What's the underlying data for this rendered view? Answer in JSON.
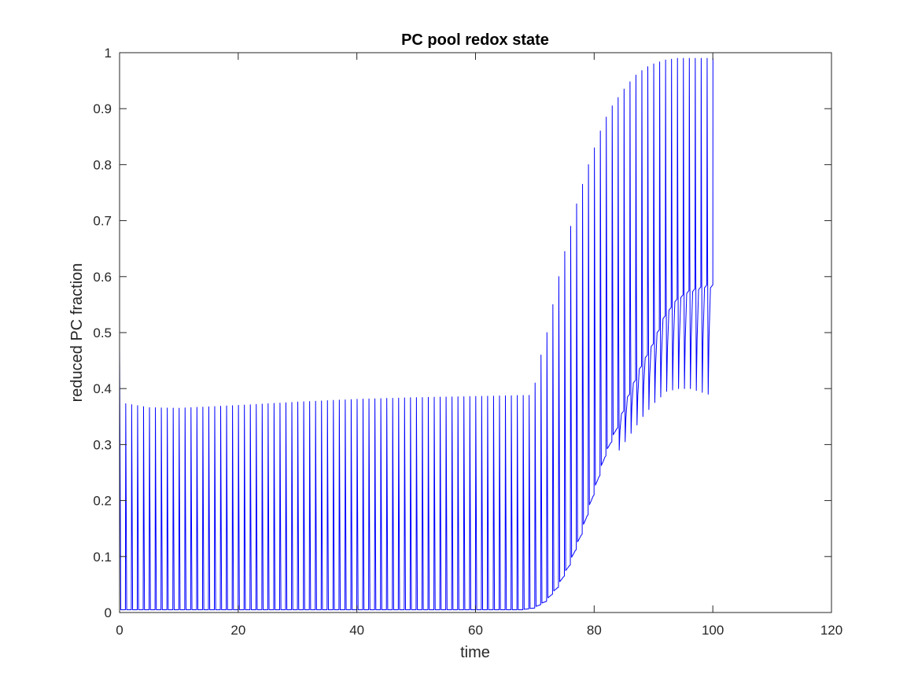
{
  "chart_data": {
    "type": "line",
    "title": "PC pool redox state",
    "xlabel": "time",
    "ylabel": "reduced PC fraction",
    "xlim": [
      0,
      120
    ],
    "ylim": [
      0,
      1
    ],
    "xticks": [
      0,
      20,
      40,
      60,
      80,
      100,
      120
    ],
    "yticks": [
      0,
      0.1,
      0.2,
      0.3,
      0.4,
      0.5,
      0.6,
      0.7,
      0.8,
      0.9,
      1
    ],
    "grid": false,
    "box": true,
    "series": [
      {
        "color": "#0000ff",
        "style": "periodic spikes",
        "pulse_period": 1,
        "first_point": [
          0,
          0.47
        ],
        "end_time": 100,
        "final_value": 0.99,
        "peak_envelope": [
          [
            1,
            0.373
          ],
          [
            5,
            0.366
          ],
          [
            10,
            0.365
          ],
          [
            20,
            0.37
          ],
          [
            30,
            0.376
          ],
          [
            40,
            0.381
          ],
          [
            50,
            0.384
          ],
          [
            60,
            0.386
          ],
          [
            69,
            0.388
          ],
          [
            70,
            0.41
          ],
          [
            71,
            0.46
          ],
          [
            72,
            0.5
          ],
          [
            73,
            0.55
          ],
          [
            74,
            0.6
          ],
          [
            75,
            0.645
          ],
          [
            76,
            0.69
          ],
          [
            77,
            0.73
          ],
          [
            78,
            0.765
          ],
          [
            79,
            0.8
          ],
          [
            80,
            0.83
          ],
          [
            81,
            0.86
          ],
          [
            82,
            0.885
          ],
          [
            83,
            0.905
          ],
          [
            84,
            0.92
          ],
          [
            85,
            0.935
          ],
          [
            86,
            0.948
          ],
          [
            87,
            0.96
          ],
          [
            88,
            0.968
          ],
          [
            89,
            0.975
          ],
          [
            90,
            0.98
          ],
          [
            92,
            0.987
          ],
          [
            94,
            0.99
          ],
          [
            96,
            0.99
          ],
          [
            99,
            0.99
          ]
        ],
        "trough_envelope": [
          [
            0,
            0.005
          ],
          [
            68,
            0.005
          ],
          [
            70,
            0.008
          ],
          [
            72,
            0.02
          ],
          [
            74,
            0.045
          ],
          [
            76,
            0.085
          ],
          [
            78,
            0.14
          ],
          [
            80,
            0.21
          ],
          [
            82,
            0.28
          ],
          [
            84,
            0.33
          ],
          [
            85,
            0.36
          ],
          [
            86,
            0.39
          ],
          [
            88,
            0.44
          ],
          [
            90,
            0.48
          ],
          [
            92,
            0.53
          ],
          [
            94,
            0.56
          ],
          [
            96,
            0.575
          ],
          [
            99,
            0.585
          ]
        ],
        "late_cycle_dip": [
          [
            84,
            0.29
          ],
          [
            86,
            0.32
          ],
          [
            88,
            0.35
          ],
          [
            90,
            0.375
          ],
          [
            92,
            0.395
          ],
          [
            94,
            0.4
          ],
          [
            96,
            0.4
          ],
          [
            99,
            0.39
          ]
        ]
      }
    ]
  }
}
